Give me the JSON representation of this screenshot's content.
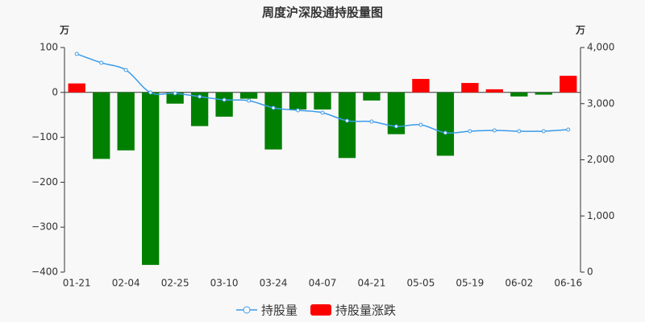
{
  "chart_data": {
    "type": "bar-line",
    "title": "周度沪深股通持股量图",
    "y_unit": "万",
    "y2_unit": "万",
    "categories": [
      "01-21",
      null,
      "02-04",
      null,
      "02-25",
      null,
      "03-10",
      null,
      "03-24",
      null,
      "04-07",
      null,
      "04-21",
      null,
      "05-05",
      null,
      "05-19",
      null,
      "06-02",
      null,
      "06-16"
    ],
    "series": [
      {
        "name": "持股量",
        "type": "line",
        "axis": "y2",
        "color": "#3a9be8",
        "values": [
          3885,
          3728,
          3599,
          3197,
          3183,
          3125,
          3068,
          3054,
          2925,
          2882,
          2839,
          2695,
          2681,
          2595,
          2624,
          2480,
          2509,
          2523,
          2509,
          2509,
          2538
        ]
      },
      {
        "name": "持股量涨跌",
        "type": "bar",
        "axis": "y",
        "color": "#ff0000",
        "negative_color": "#008000",
        "values": [
          20,
          -148,
          -129,
          -384,
          -25,
          -75,
          -54,
          -14,
          -127,
          -38,
          -38,
          -146,
          -18,
          -93,
          30,
          -141,
          21,
          7,
          -9,
          -5,
          37
        ]
      }
    ],
    "ylim": [
      -400,
      100
    ],
    "yticks": [
      {
        "value": -400,
        "label": "−400"
      },
      {
        "value": -300,
        "label": "−300"
      },
      {
        "value": -200,
        "label": "−200"
      },
      {
        "value": -100,
        "label": "−100"
      },
      0,
      100
    ],
    "y2lim": [
      0,
      4000
    ],
    "y2ticks": [
      0,
      {
        "value": 1000,
        "label": "1,000"
      },
      {
        "value": 2000,
        "label": "2,000"
      },
      {
        "value": 3000,
        "label": "3,000"
      },
      {
        "value": 4000,
        "label": "4,000"
      }
    ],
    "grid": false,
    "legend": "bottom"
  }
}
